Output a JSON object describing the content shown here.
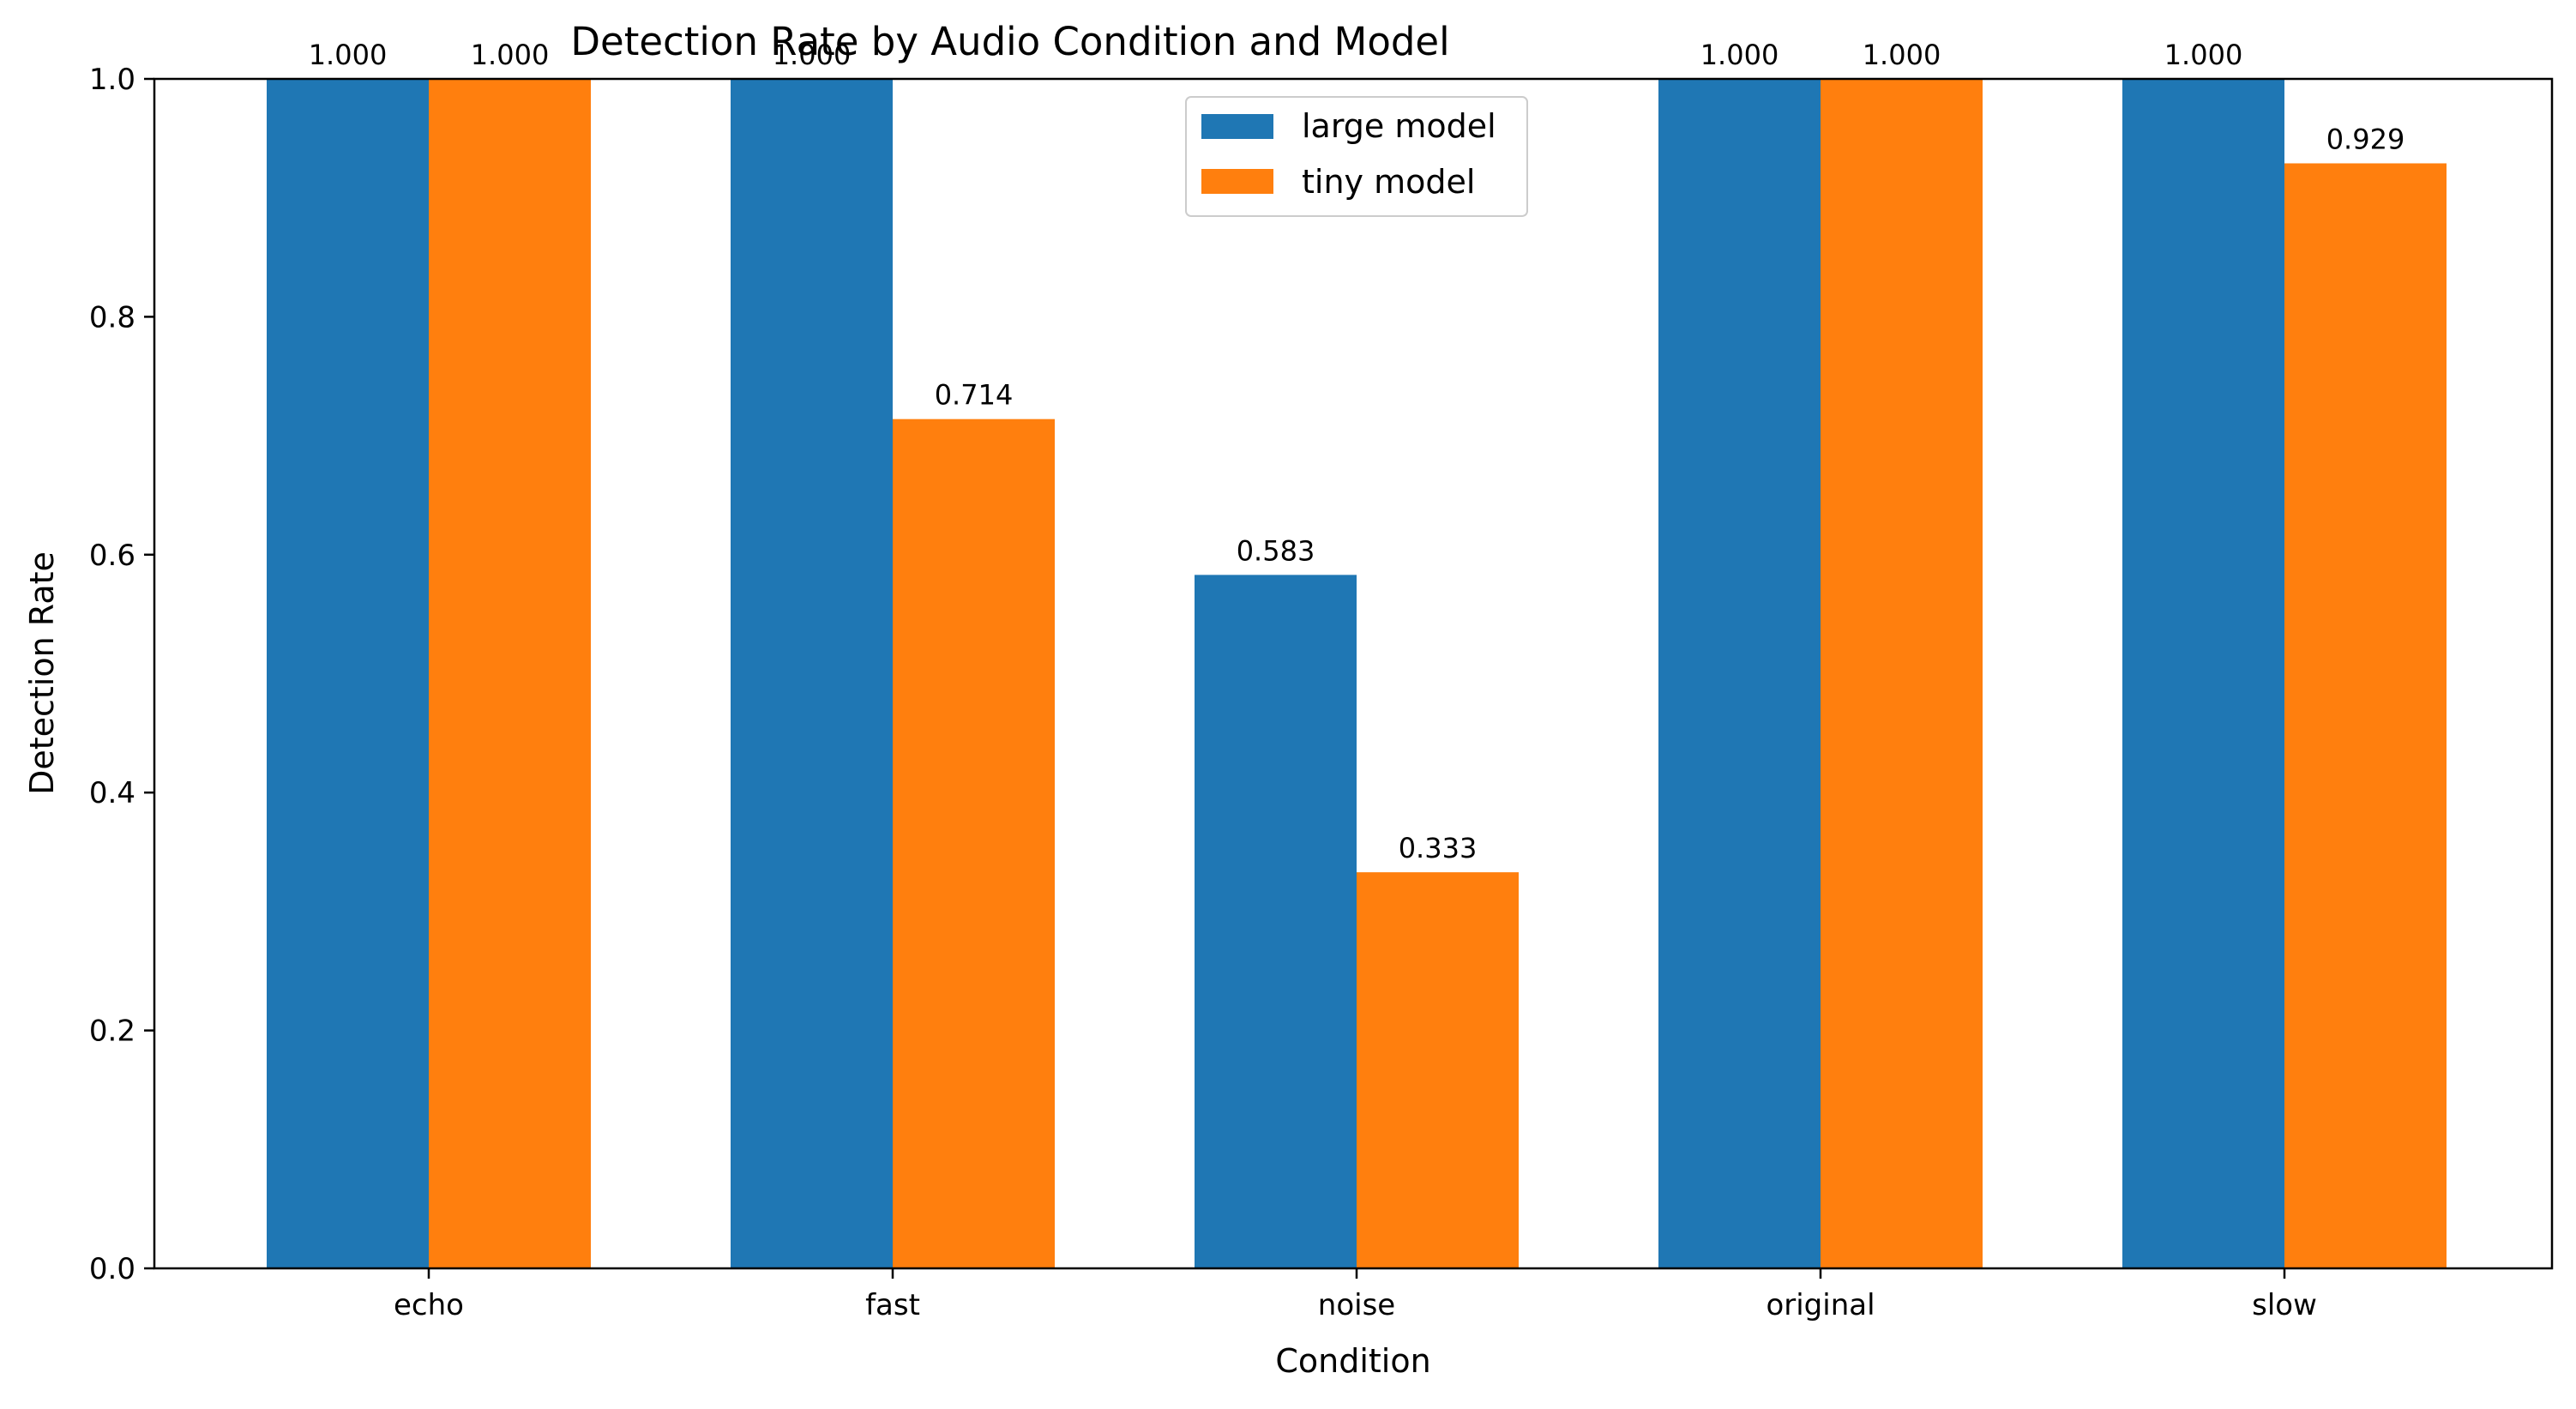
{
  "chart_data": {
    "type": "bar",
    "title": "Detection Rate by Audio Condition and Model",
    "xlabel": "Condition",
    "ylabel": "Detection Rate",
    "categories": [
      "echo",
      "fast",
      "noise",
      "original",
      "slow"
    ],
    "series": [
      {
        "name": "large model",
        "color": "#1f77b4",
        "values": [
          1.0,
          1.0,
          0.583,
          1.0,
          1.0
        ],
        "labels": [
          "1.000",
          "1.000",
          "0.583",
          "1.000",
          "1.000"
        ]
      },
      {
        "name": "tiny model",
        "color": "#ff7f0e",
        "values": [
          1.0,
          0.714,
          0.333,
          1.0,
          0.929
        ],
        "labels": [
          "1.000",
          "0.714",
          "0.333",
          "1.000",
          "0.929"
        ]
      }
    ],
    "ylim": [
      0,
      1.0
    ],
    "yticks": [
      0.0,
      0.2,
      0.4,
      0.6,
      0.8,
      1.0
    ],
    "ytick_labels": [
      "0.0",
      "0.2",
      "0.4",
      "0.6",
      "0.8",
      "1.0"
    ],
    "grid": false,
    "legend_position": "top-center"
  }
}
